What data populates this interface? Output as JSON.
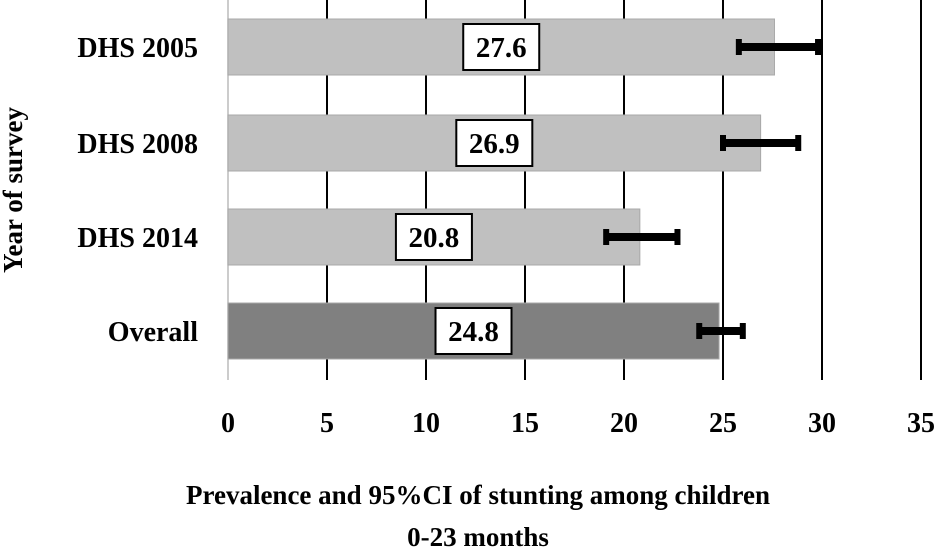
{
  "chart_data": {
    "type": "bar",
    "orientation": "horizontal",
    "categories": [
      "DHS 2005",
      "DHS 2008",
      "DHS 2014",
      "Overall"
    ],
    "values": [
      27.6,
      26.9,
      20.8,
      24.8
    ],
    "ci_lower": [
      25.8,
      25.0,
      19.1,
      23.8
    ],
    "ci_upper": [
      29.8,
      28.8,
      22.7,
      26.0
    ],
    "bar_colors": [
      "#c0c0c0",
      "#c0c0c0",
      "#c0c0c0",
      "#808080"
    ],
    "data_labels": [
      "27.6",
      "26.9",
      "20.8",
      "24.8"
    ],
    "xlabel": "Prevalence and 95%CI of stunting among children",
    "xlabel_line2": "0-23 months",
    "ylabel": "Year of survey",
    "xlim": [
      0,
      35
    ],
    "xticks": [
      0,
      5,
      10,
      15,
      20,
      25,
      30,
      35
    ],
    "grid": "vertical"
  }
}
